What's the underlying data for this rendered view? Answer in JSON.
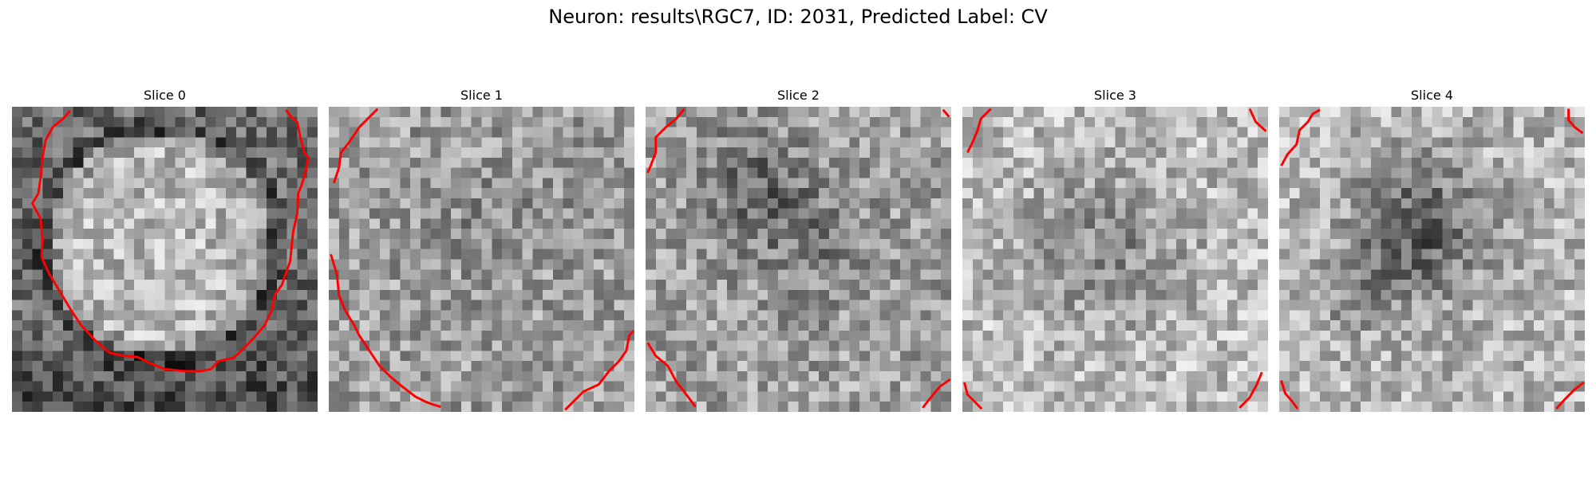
{
  "title": "Neuron: results\\RGC7, ID: 2031, Predicted Label: CV",
  "colors": {
    "contour": "#ff0000",
    "background": "#ffffff"
  },
  "slices": [
    {
      "title": "Slice 0"
    },
    {
      "title": "Slice 1"
    },
    {
      "title": "Slice 2"
    },
    {
      "title": "Slice 3"
    },
    {
      "title": "Slice 4"
    }
  ]
}
